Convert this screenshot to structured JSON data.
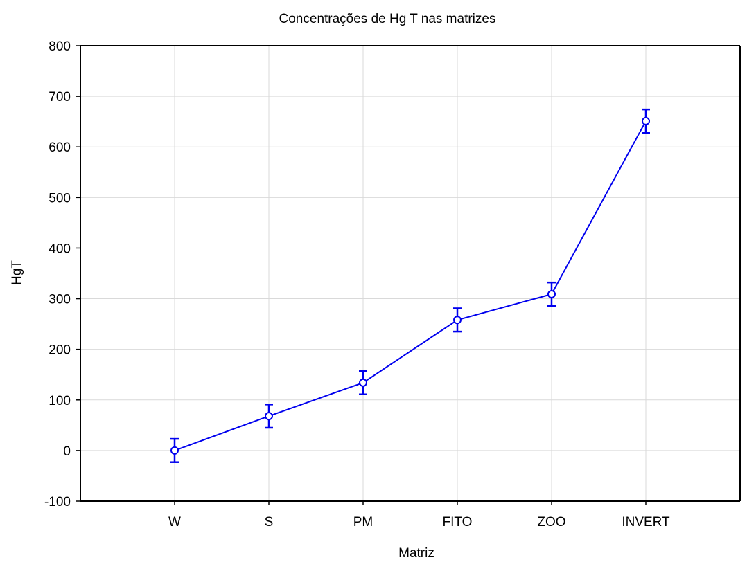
{
  "chart_data": {
    "type": "line",
    "title": "Concentrações de Hg T nas matrizes",
    "xlabel": "Matriz",
    "ylabel": "HgT",
    "categories": [
      "W",
      "S",
      "PM",
      "FITO",
      "ZOO",
      "INVERT"
    ],
    "series": [
      {
        "values": [
          0,
          68,
          134,
          258,
          309,
          651
        ],
        "error_low": [
          -23,
          45,
          111,
          235,
          286,
          628
        ],
        "error_high": [
          23,
          91,
          157,
          281,
          332,
          674
        ]
      }
    ],
    "ylim": [
      -100,
      800
    ],
    "yticks": [
      "-100",
      "0",
      "100",
      "200",
      "300",
      "400",
      "500",
      "600",
      "700",
      "800"
    ],
    "grid": true,
    "legend": "none"
  },
  "colors": {
    "series": "#0000ee",
    "grid": "#d9d9d9",
    "axis": "#000000"
  }
}
